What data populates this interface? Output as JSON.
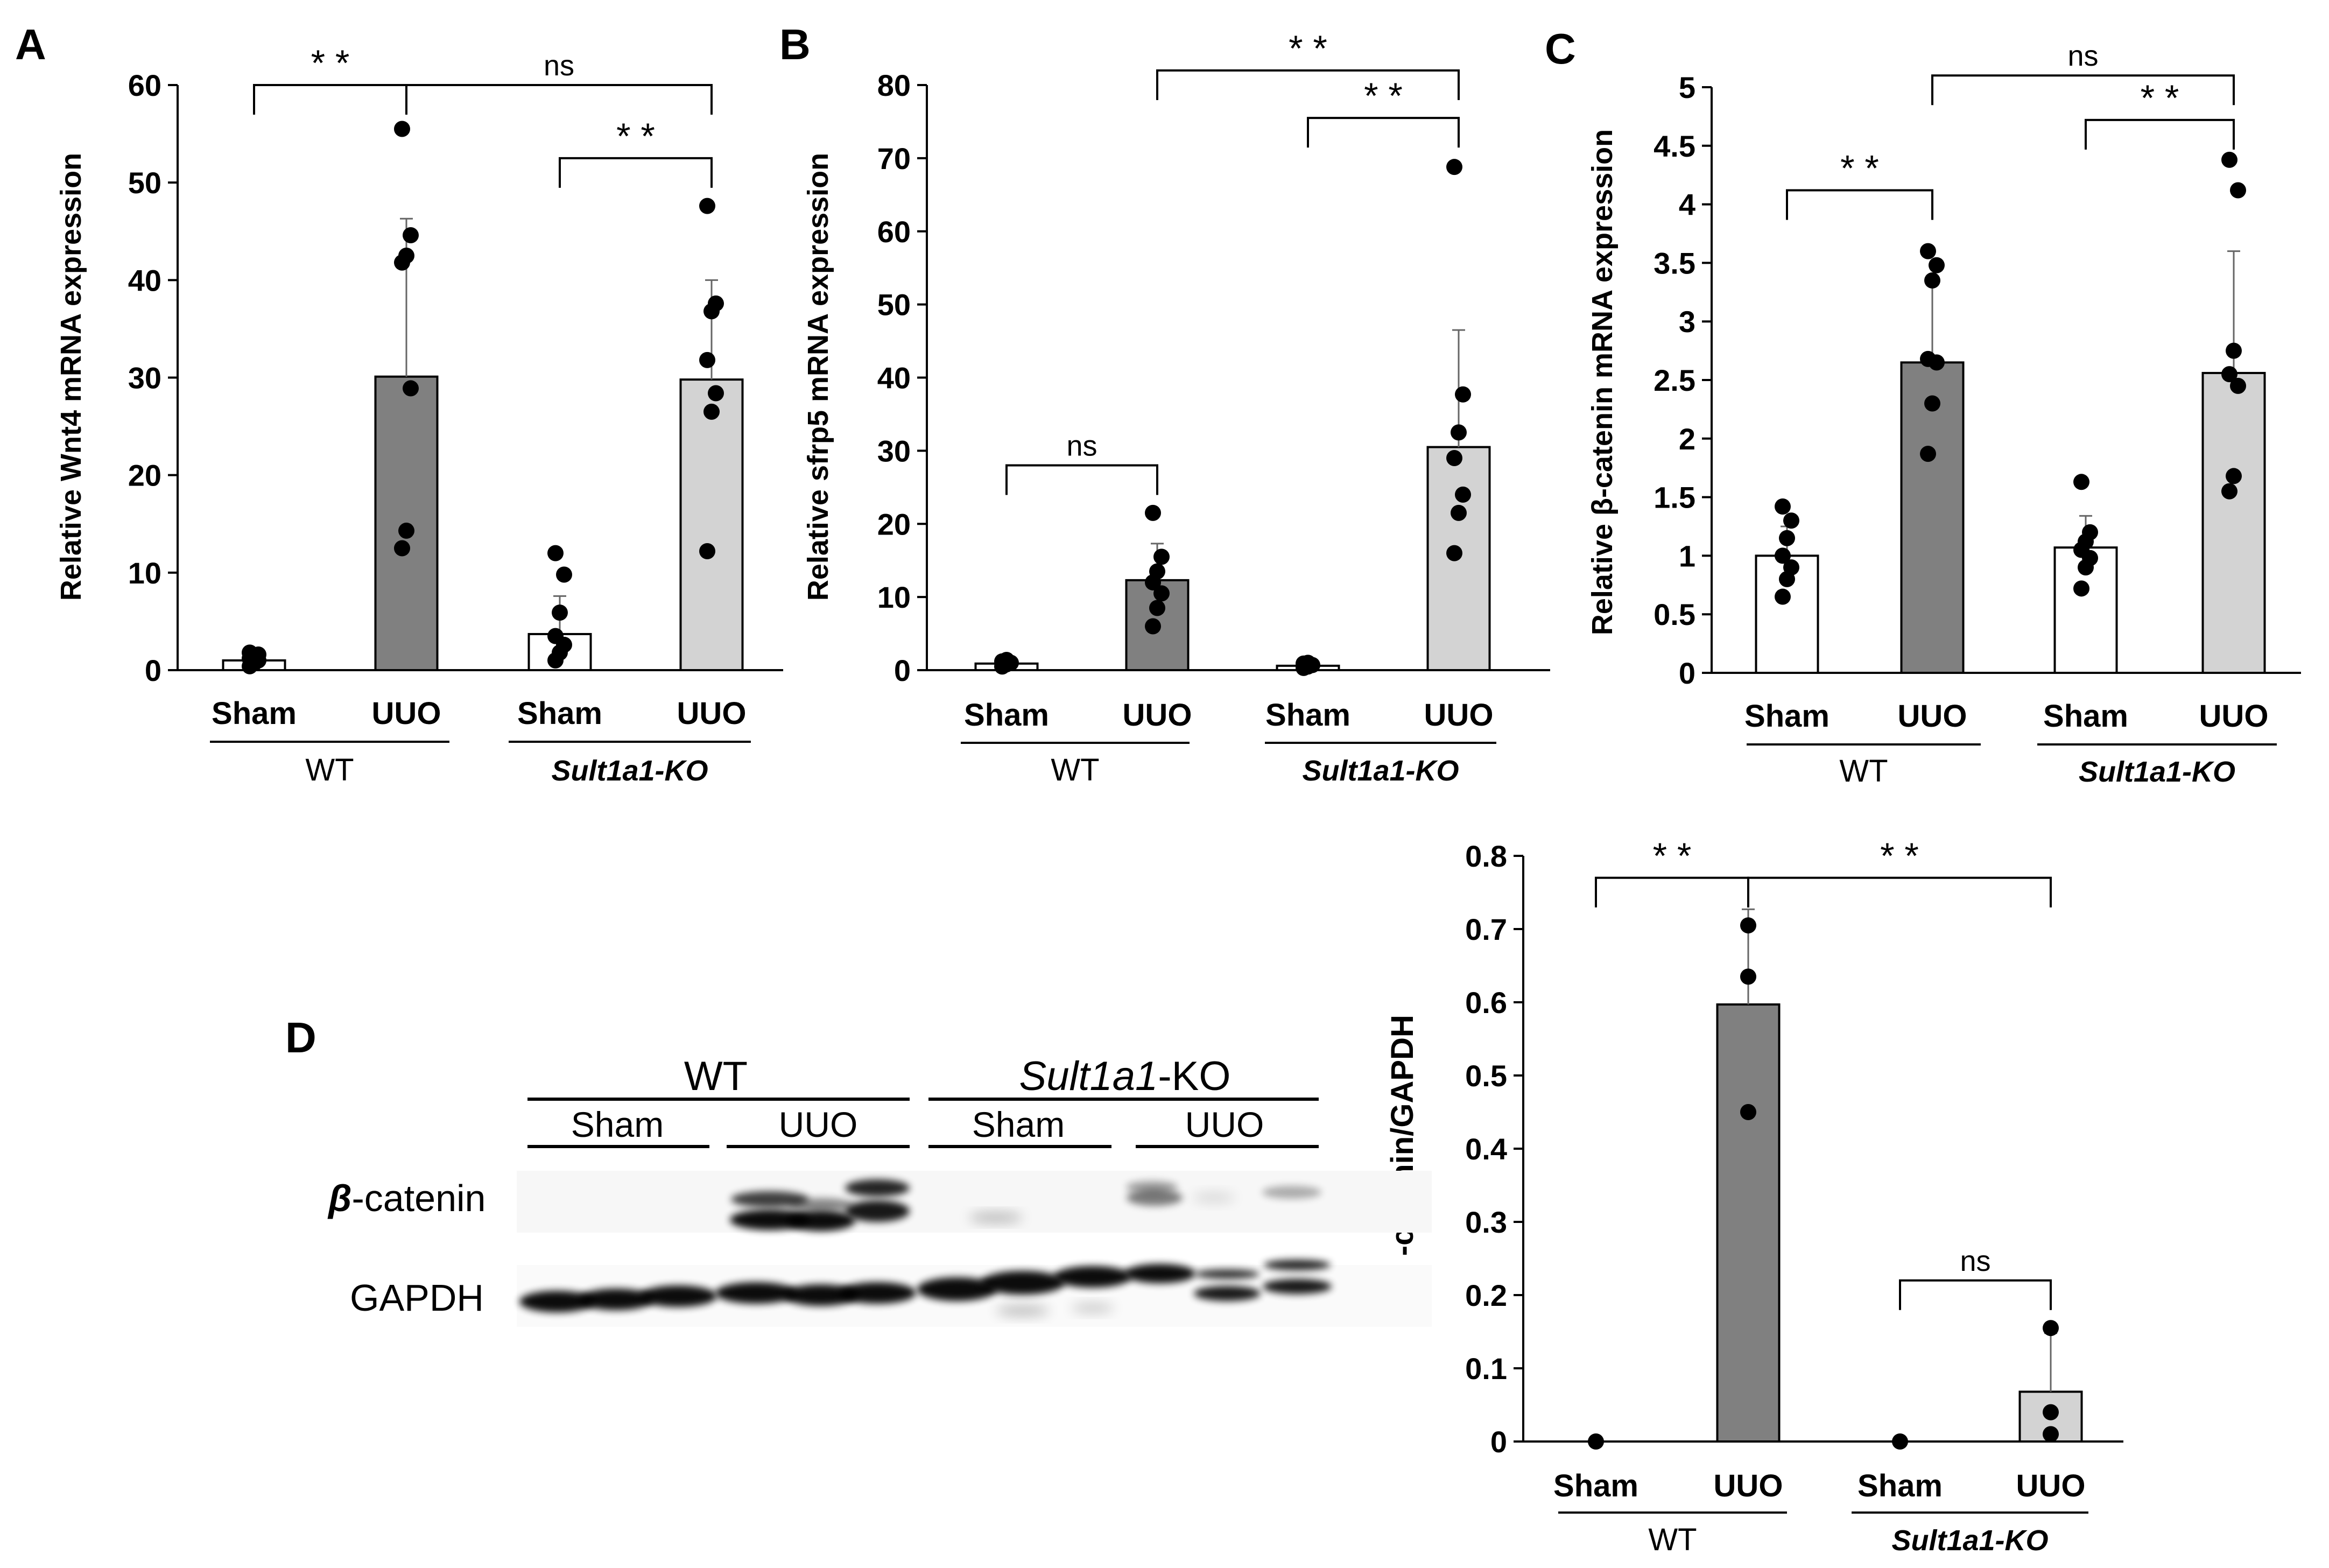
{
  "chart_data": [
    {
      "panel": "A",
      "type": "bar",
      "ylabel": "Relative Wnt4 mRNA expression",
      "ylim": [
        0,
        60
      ],
      "yticks": [
        0,
        10,
        20,
        30,
        40,
        50,
        60
      ],
      "categories": [
        "Sham",
        "UUO",
        "Sham",
        "UUO"
      ],
      "groups": [
        "WT",
        "Sult1a1-KO"
      ],
      "bars": [
        {
          "label": "Sham",
          "group": "WT",
          "mean": 1.0,
          "sd": 0.5,
          "fill": "#ffffff",
          "points": [
            0.4,
            0.7,
            1.0,
            1.2,
            1.4,
            1.6,
            1.8
          ]
        },
        {
          "label": "UUO",
          "group": "WT",
          "mean": 30.1,
          "sd": 16.2,
          "fill": "#808080",
          "points": [
            12.5,
            14.3,
            28.9,
            41.8,
            42.5,
            44.6,
            55.5
          ]
        },
        {
          "label": "Sham",
          "group": "Sult1a1-KO",
          "mean": 3.7,
          "sd": 3.9,
          "fill": "#ffffff",
          "points": [
            1.0,
            1.8,
            2.6,
            3.5,
            5.9,
            9.8,
            12.0
          ]
        },
        {
          "label": "UUO",
          "group": "Sult1a1-KO",
          "mean": 29.8,
          "sd": 10.2,
          "fill": "#d3d3d3",
          "points": [
            12.2,
            26.5,
            28.4,
            31.8,
            36.8,
            37.6,
            47.6
          ]
        }
      ],
      "brackets": [
        {
          "from": 0,
          "to": 1,
          "label": "* *",
          "level": 60
        },
        {
          "from": 1,
          "to": 3,
          "label": "ns",
          "level": 60
        },
        {
          "from": 2,
          "to": 3,
          "label": "* *",
          "level": 52.5
        }
      ]
    },
    {
      "panel": "B",
      "type": "bar",
      "ylabel": "Relative sfrp5 mRNA expression",
      "ylim": [
        0,
        80
      ],
      "yticks": [
        0,
        10,
        20,
        30,
        40,
        50,
        60,
        70,
        80
      ],
      "categories": [
        "Sham",
        "UUO",
        "Sham",
        "UUO"
      ],
      "groups": [
        "WT",
        "Sult1a1-KO"
      ],
      "bars": [
        {
          "label": "Sham",
          "group": "WT",
          "mean": 0.9,
          "sd": 0.3,
          "fill": "#ffffff",
          "points": [
            0.5,
            0.8,
            1.0,
            1.2,
            1.4
          ]
        },
        {
          "label": "UUO",
          "group": "WT",
          "mean": 12.3,
          "sd": 5.0,
          "fill": "#808080",
          "points": [
            6.0,
            8.5,
            10.5,
            12.0,
            13.5,
            15.5,
            21.5
          ]
        },
        {
          "label": "Sham",
          "group": "Sult1a1-KO",
          "mean": 0.6,
          "sd": 0.3,
          "fill": "#ffffff",
          "points": [
            0.3,
            0.5,
            0.7,
            0.9,
            1.0
          ]
        },
        {
          "label": "UUO",
          "group": "Sult1a1-KO",
          "mean": 30.5,
          "sd": 16.0,
          "fill": "#d3d3d3",
          "points": [
            16.0,
            21.5,
            24.0,
            29.0,
            32.5,
            37.7,
            68.8
          ]
        }
      ],
      "brackets": [
        {
          "from": 0,
          "to": 1,
          "label": "ns",
          "level": 28
        },
        {
          "from": 1,
          "to": 3,
          "label": "* *",
          "level": 82
        },
        {
          "from": 2,
          "to": 3,
          "label": "* *",
          "level": 75.5
        }
      ]
    },
    {
      "panel": "C",
      "type": "bar",
      "ylabel": "Relative β-catenin mRNA expression",
      "ylim": [
        0,
        5
      ],
      "yticks": [
        0,
        0.5,
        1,
        1.5,
        2,
        2.5,
        3,
        3.5,
        4,
        4.5,
        5
      ],
      "categories": [
        "Sham",
        "UUO",
        "Sham",
        "UUO"
      ],
      "groups": [
        "WT",
        "Sult1a1-KO"
      ],
      "bars": [
        {
          "label": "Sham",
          "group": "WT",
          "mean": 1.0,
          "sd": 0.25,
          "fill": "#ffffff",
          "points": [
            0.65,
            0.8,
            0.9,
            1.0,
            1.15,
            1.3,
            1.42
          ]
        },
        {
          "label": "UUO",
          "group": "WT",
          "mean": 2.65,
          "sd": 0.7,
          "fill": "#808080",
          "points": [
            1.87,
            2.3,
            2.65,
            2.68,
            3.35,
            3.48,
            3.6
          ]
        },
        {
          "label": "Sham",
          "group": "Sult1a1-KO",
          "mean": 1.07,
          "sd": 0.27,
          "fill": "#ffffff",
          "points": [
            0.72,
            0.9,
            0.98,
            1.05,
            1.12,
            1.2,
            1.63
          ]
        },
        {
          "label": "UUO",
          "group": "Sult1a1-KO",
          "mean": 2.56,
          "sd": 1.04,
          "fill": "#d3d3d3",
          "points": [
            1.55,
            1.68,
            2.45,
            2.55,
            2.75,
            4.12,
            4.38
          ]
        }
      ],
      "brackets": [
        {
          "from": 0,
          "to": 1,
          "label": "* *",
          "level": 4.12
        },
        {
          "from": 1,
          "to": 3,
          "label": "ns",
          "level": 5.1
        },
        {
          "from": 2,
          "to": 3,
          "label": "* *",
          "level": 4.72
        }
      ]
    },
    {
      "panel": "D-quantification",
      "type": "bar",
      "ylabel": "β -catenin/GAPDH",
      "ylim": [
        0,
        0.8
      ],
      "yticks": [
        0,
        0.1,
        0.2,
        0.3,
        0.4,
        0.5,
        0.6,
        0.7,
        0.8
      ],
      "categories": [
        "Sham",
        "UUO",
        "Sham",
        "UUO"
      ],
      "groups": [
        "WT",
        "Sult1a1-KO"
      ],
      "bars": [
        {
          "label": "Sham",
          "group": "WT",
          "mean": 0.0,
          "sd": 0.0,
          "fill": "#ffffff",
          "points": [
            0.0
          ]
        },
        {
          "label": "UUO",
          "group": "WT",
          "mean": 0.597,
          "sd": 0.13,
          "fill": "#808080",
          "points": [
            0.45,
            0.635,
            0.705
          ]
        },
        {
          "label": "Sham",
          "group": "Sult1a1-KO",
          "mean": 0.0,
          "sd": 0.0,
          "fill": "#ffffff",
          "points": [
            0.0
          ]
        },
        {
          "label": "UUO",
          "group": "Sult1a1-KO",
          "mean": 0.068,
          "sd": 0.08,
          "fill": "#d3d3d3",
          "points": [
            0.01,
            0.04,
            0.155
          ]
        }
      ],
      "brackets": [
        {
          "from": 0,
          "to": 1,
          "label": "* *",
          "level": 0.77
        },
        {
          "from": 1,
          "to": 3,
          "label": "* *",
          "level": 0.77
        },
        {
          "from": 2,
          "to": 3,
          "label": "ns",
          "level": 0.22
        }
      ]
    }
  ],
  "panel_letters": {
    "a": "A",
    "b": "B",
    "c": "C",
    "d": "D"
  },
  "axis_labels": {
    "sham": "Sham",
    "uuo": "UUO",
    "wt": "WT",
    "ko": "Sult1a1-KO"
  },
  "blot": {
    "header_wt": "WT",
    "header_ko_italic": "Sult1a1",
    "header_ko_rest": "-KO",
    "sham": "Sham",
    "uuo": "UUO",
    "row1_symbol": "β",
    "row1_rest": "-catenin",
    "row2": "GAPDH"
  }
}
